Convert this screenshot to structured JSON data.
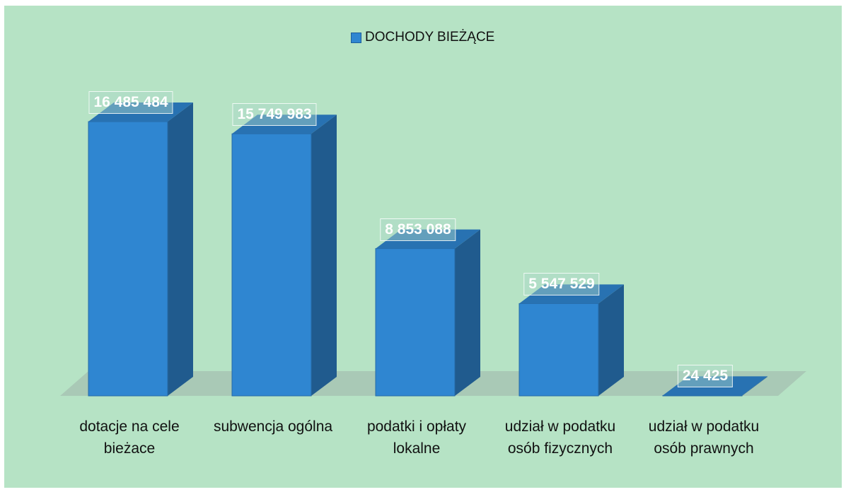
{
  "chart_data": {
    "type": "bar3d",
    "categories": [
      "dotacje na cele bieżace",
      "subwencja ogólna",
      "podatki i opłaty lokalne",
      "udział w podatku osób fizycznych",
      "udział w podatku osób prawnych"
    ],
    "series": [
      {
        "name": "DOCHODY BIEŻĄCE",
        "color": "#2f86d1",
        "values": [
          16485484,
          15749983,
          8853088,
          5547529,
          24425
        ],
        "value_labels": [
          "16 485 484",
          "15 749 983",
          "8 853 088",
          "5 547 529",
          "24 425"
        ]
      }
    ]
  }
}
